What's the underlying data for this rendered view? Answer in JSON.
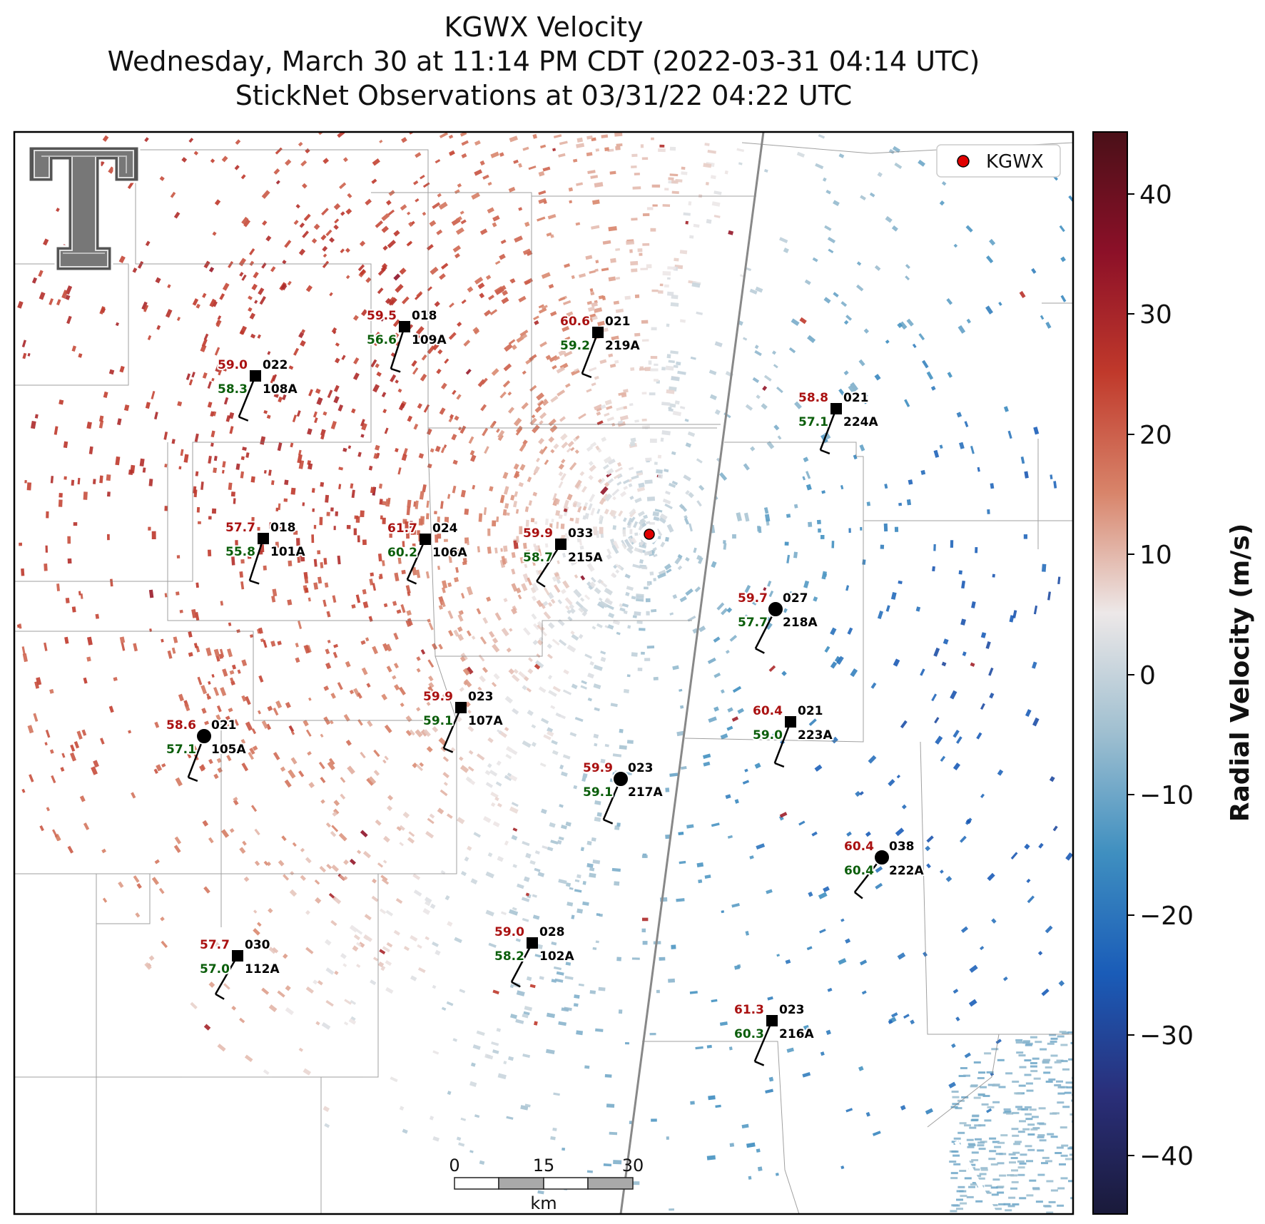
{
  "title": {
    "line1": "KGWX Velocity",
    "line2": "Wednesday, March 30 at 11:14 PM CDT (2022-03-31 04:14 UTC)",
    "line3": "StickNet Observations at 03/31/22 04:22 UTC"
  },
  "legend": {
    "label": "KGWX",
    "marker_color": "#e00000"
  },
  "colorbar": {
    "label": "Radial Velocity (m/s)",
    "ticks": [
      "40",
      "30",
      "20",
      "10",
      "0",
      "−10",
      "−20",
      "−30",
      "−40"
    ],
    "colormap_stops": [
      "#4a1018",
      "#8c1028",
      "#c0392b",
      "#d8846a",
      "#ede8e8",
      "#9fbfd0",
      "#3f8fc0",
      "#1a5cb8",
      "#2a2f7a",
      "#1a1a3a"
    ]
  },
  "scale_bar": {
    "labels": [
      "0",
      "15",
      "30"
    ],
    "unit": "km"
  },
  "logo": {
    "name": "Texas Tech Double T"
  },
  "stations": [
    {
      "id": "109A",
      "temp": "59.5",
      "dew": "56.6",
      "dir": "018"
    },
    {
      "id": "219A",
      "temp": "60.6",
      "dew": "59.2",
      "dir": "021"
    },
    {
      "id": "108A",
      "temp": "59.0",
      "dew": "58.3",
      "dir": "022"
    },
    {
      "id": "224A",
      "temp": "58.8",
      "dew": "57.1",
      "dir": "021"
    },
    {
      "id": "101A",
      "temp": "57.7",
      "dew": "55.8",
      "dir": "018"
    },
    {
      "id": "106A",
      "temp": "61.7",
      "dew": "60.2",
      "dir": "024"
    },
    {
      "id": "215A",
      "temp": "59.9",
      "dew": "58.7",
      "dir": "033"
    },
    {
      "id": "218A",
      "temp": "59.7",
      "dew": "57.7",
      "dir": "027"
    },
    {
      "id": "107A",
      "temp": "59.9",
      "dew": "59.1",
      "dir": "023"
    },
    {
      "id": "223A",
      "temp": "60.4",
      "dew": "59.0",
      "dir": "021"
    },
    {
      "id": "105A",
      "temp": "58.6",
      "dew": "57.1",
      "dir": "021"
    },
    {
      "id": "217A",
      "temp": "59.9",
      "dew": "59.1",
      "dir": "023"
    },
    {
      "id": "222A",
      "temp": "60.4",
      "dew": "60.4",
      "dir": "038"
    },
    {
      "id": "112A",
      "temp": "57.7",
      "dew": "57.0",
      "dir": "030"
    },
    {
      "id": "102A",
      "temp": "59.0",
      "dew": "58.2",
      "dir": "028"
    },
    {
      "id": "216A",
      "temp": "61.3",
      "dew": "60.3",
      "dir": "023"
    }
  ]
}
